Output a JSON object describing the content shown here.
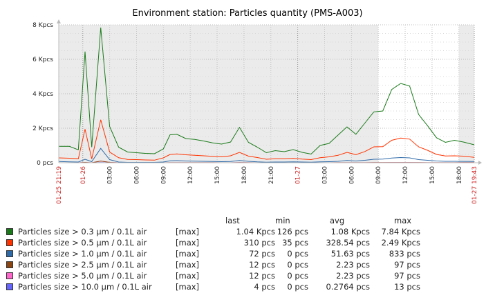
{
  "chart_data": {
    "type": "line",
    "title": "Environment station: Particles quantity (PMS-A003)",
    "xlabel": "",
    "ylabel": "",
    "y_unit": "pcs",
    "ylim": [
      0,
      8000
    ],
    "y_ticks": [
      {
        "value": 0,
        "label": "0 pcs"
      },
      {
        "value": 2000,
        "label": "2 Kpcs"
      },
      {
        "value": 4000,
        "label": "4 Kpcs"
      },
      {
        "value": 6000,
        "label": "6 Kpcs"
      },
      {
        "value": 8000,
        "label": "8 Kpcs"
      }
    ],
    "x_range": [
      "2024-01-25 21:19",
      "2024-01-27 19:43"
    ],
    "x_ticks": [
      {
        "time": "2024-01-25 21:19",
        "label": "01-25 21:19",
        "highlight": true
      },
      {
        "time": "2024-01-26 00:00",
        "label": "01-26",
        "highlight": true
      },
      {
        "time": "2024-01-26 03:00",
        "label": "03:00",
        "highlight": false
      },
      {
        "time": "2024-01-26 06:00",
        "label": "06:00",
        "highlight": false
      },
      {
        "time": "2024-01-26 09:00",
        "label": "09:00",
        "highlight": false
      },
      {
        "time": "2024-01-26 12:00",
        "label": "12:00",
        "highlight": false
      },
      {
        "time": "2024-01-26 15:00",
        "label": "15:00",
        "highlight": false
      },
      {
        "time": "2024-01-26 18:00",
        "label": "18:00",
        "highlight": false
      },
      {
        "time": "2024-01-26 21:00",
        "label": "21:00",
        "highlight": false
      },
      {
        "time": "2024-01-27 00:00",
        "label": "01-27",
        "highlight": true
      },
      {
        "time": "2024-01-27 03:00",
        "label": "03:00",
        "highlight": false
      },
      {
        "time": "2024-01-27 06:00",
        "label": "06:00",
        "highlight": false
      },
      {
        "time": "2024-01-27 09:00",
        "label": "09:00",
        "highlight": false
      },
      {
        "time": "2024-01-27 12:00",
        "label": "12:00",
        "highlight": false
      },
      {
        "time": "2024-01-27 15:00",
        "label": "15:00",
        "highlight": false
      },
      {
        "time": "2024-01-27 18:00",
        "label": "18:00",
        "highlight": false
      },
      {
        "time": "2024-01-27 19:43",
        "label": "01-27 19:43",
        "highlight": true
      }
    ],
    "shaded_periods": [
      [
        "2024-01-25 21:19",
        "2024-01-27 09:00"
      ],
      [
        "2024-01-27 18:00",
        "2024-01-27 19:43"
      ]
    ],
    "grid": true,
    "x": [
      "2024-01-25 21:19",
      "2024-01-25 22:30",
      "2024-01-25 23:30",
      "2024-01-26 00:15",
      "2024-01-26 01:00",
      "2024-01-26 02:00",
      "2024-01-26 03:00",
      "2024-01-26 04:00",
      "2024-01-26 05:00",
      "2024-01-26 06:00",
      "2024-01-26 07:00",
      "2024-01-26 08:00",
      "2024-01-26 09:00",
      "2024-01-26 09:45",
      "2024-01-26 10:30",
      "2024-01-26 11:30",
      "2024-01-26 12:30",
      "2024-01-26 13:30",
      "2024-01-26 14:30",
      "2024-01-26 15:30",
      "2024-01-26 16:30",
      "2024-01-26 17:30",
      "2024-01-26 18:30",
      "2024-01-26 19:30",
      "2024-01-26 20:30",
      "2024-01-26 21:30",
      "2024-01-26 22:30",
      "2024-01-26 23:30",
      "2024-01-27 00:30",
      "2024-01-27 01:30",
      "2024-01-27 02:30",
      "2024-01-27 03:30",
      "2024-01-27 04:30",
      "2024-01-27 05:30",
      "2024-01-27 06:30",
      "2024-01-27 07:30",
      "2024-01-27 08:30",
      "2024-01-27 09:30",
      "2024-01-27 10:30",
      "2024-01-27 11:30",
      "2024-01-27 12:30",
      "2024-01-27 13:30",
      "2024-01-27 14:30",
      "2024-01-27 15:30",
      "2024-01-27 16:30",
      "2024-01-27 17:30",
      "2024-01-27 18:30",
      "2024-01-27 19:43"
    ],
    "series": [
      {
        "name": "Particles size > 0.3 µm / 0.1L air",
        "color": "#1a7a1a",
        "func": "[max]",
        "last": "1.04 Kpcs",
        "min": "126 pcs",
        "avg": "1.08 Kpcs",
        "max": "7.84 Kpcs",
        "values": [
          950,
          950,
          750,
          6450,
          900,
          7840,
          2100,
          900,
          620,
          580,
          540,
          520,
          800,
          1620,
          1650,
          1400,
          1350,
          1260,
          1150,
          1080,
          1200,
          2050,
          1180,
          900,
          580,
          700,
          640,
          760,
          600,
          500,
          1000,
          1120,
          1600,
          2080,
          1650,
          2300,
          2950,
          3000,
          4250,
          4600,
          4450,
          2800,
          2150,
          1450,
          1180,
          1300,
          1200,
          1040
        ]
      },
      {
        "name": "Particles size > 0.5 µm / 0.1L air",
        "color": "#ff3300",
        "func": "[max]",
        "last": "310 pcs",
        "min": "35 pcs",
        "avg": "328.54 pcs",
        "max": "2.49 Kpcs",
        "values": [
          280,
          260,
          230,
          1950,
          220,
          2490,
          620,
          290,
          190,
          180,
          160,
          150,
          280,
          480,
          510,
          460,
          430,
          400,
          370,
          340,
          400,
          600,
          380,
          300,
          200,
          230,
          230,
          250,
          210,
          180,
          290,
          340,
          430,
          600,
          470,
          650,
          920,
          930,
          1300,
          1430,
          1370,
          920,
          720,
          480,
          390,
          400,
          380,
          310
        ]
      },
      {
        "name": "Particles size > 1.0 µm / 0.1L air",
        "color": "#2f6aa8",
        "func": "[max]",
        "last": "72 pcs",
        "min": "0 pcs",
        "avg": "51.63 pcs",
        "max": "833 pcs",
        "values": [
          70,
          50,
          40,
          200,
          60,
          833,
          180,
          40,
          20,
          20,
          20,
          20,
          40,
          110,
          120,
          100,
          90,
          80,
          70,
          60,
          70,
          130,
          80,
          50,
          30,
          40,
          40,
          50,
          40,
          30,
          50,
          60,
          80,
          130,
          100,
          140,
          200,
          210,
          270,
          300,
          280,
          180,
          140,
          100,
          80,
          80,
          75,
          72
        ]
      },
      {
        "name": "Particles size > 2.5 µm / 0.1L air",
        "color": "#8b4513",
        "func": "[max]",
        "last": "12 pcs",
        "min": "0 pcs",
        "avg": "2.23 pcs",
        "max": "97 pcs",
        "values": [
          0,
          0,
          0,
          20,
          0,
          97,
          20,
          0,
          0,
          0,
          0,
          0,
          0,
          5,
          5,
          3,
          2,
          2,
          2,
          0,
          0,
          10,
          2,
          0,
          0,
          0,
          0,
          0,
          0,
          0,
          0,
          0,
          2,
          5,
          3,
          5,
          8,
          8,
          10,
          12,
          10,
          6,
          4,
          2,
          2,
          5,
          8,
          12
        ]
      },
      {
        "name": "Particles size > 5.0 µm / 0.1L air",
        "color": "#ff66cc",
        "func": "[max]",
        "last": "12 pcs",
        "min": "0 pcs",
        "avg": "2.23 pcs",
        "max": "97 pcs",
        "values": [
          0,
          0,
          0,
          20,
          0,
          97,
          20,
          0,
          0,
          0,
          0,
          0,
          0,
          5,
          5,
          3,
          2,
          2,
          2,
          0,
          0,
          10,
          2,
          0,
          0,
          0,
          0,
          0,
          0,
          0,
          0,
          0,
          2,
          5,
          3,
          5,
          8,
          8,
          10,
          12,
          10,
          6,
          4,
          2,
          2,
          5,
          8,
          12
        ]
      },
      {
        "name": "Particles size > 10.0 µm / 0.1L air",
        "color": "#6666ff",
        "func": "[max]",
        "last": "4 pcs",
        "min": "0 pcs",
        "avg": "0.2764 pcs",
        "max": "13 pcs",
        "values": [
          0,
          0,
          0,
          2,
          0,
          13,
          2,
          0,
          0,
          0,
          0,
          0,
          0,
          1,
          1,
          0,
          0,
          0,
          0,
          0,
          0,
          2,
          0,
          0,
          0,
          0,
          0,
          0,
          0,
          0,
          0,
          0,
          0,
          1,
          0,
          1,
          1,
          1,
          2,
          2,
          2,
          1,
          1,
          0,
          0,
          1,
          2,
          4
        ]
      }
    ]
  },
  "legend_header": {
    "last": "last",
    "min": "min",
    "avg": "avg",
    "max": "max"
  }
}
